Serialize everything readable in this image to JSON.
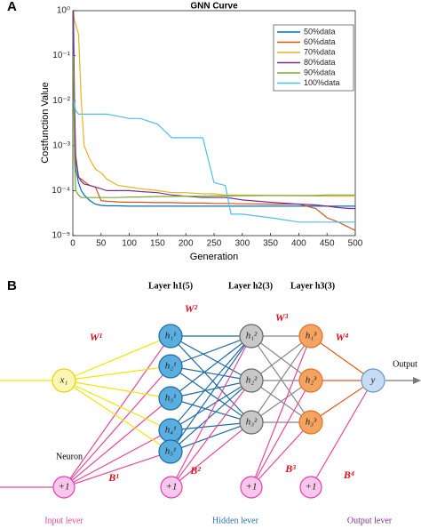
{
  "panel_labels": [
    "A",
    "B"
  ],
  "chart_data": {
    "type": "line",
    "title": "GNN Curve",
    "x_label": "Generation",
    "y_label": "Costfunction Value",
    "x": [
      1,
      3,
      5,
      10,
      15,
      20,
      30,
      40,
      50,
      60,
      80,
      100,
      120,
      150,
      175,
      200,
      230,
      250,
      270,
      280,
      290,
      300,
      350,
      400,
      430,
      450,
      470,
      490,
      500
    ],
    "series": [
      {
        "name": "50%data",
        "color": "#0072bd",
        "values": [
          1,
          0.001,
          0.0003,
          0.00015,
          0.0001,
          8e-05,
          6e-05,
          5e-05,
          4.7e-05,
          4.6e-05,
          4.6e-05,
          4.5e-05,
          4.5e-05,
          4.5e-05,
          4.5e-05,
          4.5e-05,
          4.5e-05,
          4.5e-05,
          4.5e-05,
          4.5e-05,
          4.5e-05,
          4.5e-05,
          4.5e-05,
          4.5e-05,
          4.5e-05,
          4.5e-05,
          4.5e-05,
          4.5e-05,
          4.5e-05
        ]
      },
      {
        "name": "60%data",
        "color": "#d95319",
        "values": [
          0.05,
          0.003,
          0.0005,
          0.0002,
          0.00018,
          0.00016,
          0.00013,
          0.00012,
          6e-05,
          5.8e-05,
          5.6e-05,
          5.5e-05,
          5.5e-05,
          5.4e-05,
          5.4e-05,
          5.3e-05,
          5.3e-05,
          5.2e-05,
          5.2e-05,
          5.2e-05,
          5.1e-05,
          5.1e-05,
          5e-05,
          5e-05,
          4e-05,
          2.5e-05,
          2e-05,
          1.5e-05,
          1.3e-05
        ]
      },
      {
        "name": "70%data",
        "color": "#edb120",
        "values": [
          1,
          0.6,
          0.5,
          0.3,
          0.01,
          0.001,
          0.0005,
          0.0003,
          0.00025,
          0.00018,
          0.00013,
          0.00012,
          0.00011,
          0.0001,
          9e-05,
          9e-05,
          8.5e-05,
          8.5e-05,
          8e-05,
          8e-05,
          8e-05,
          8e-05,
          7.8e-05,
          7.7e-05,
          7.6e-05,
          7.6e-05,
          7.5e-05,
          7.5e-05,
          7.5e-05
        ]
      },
      {
        "name": "80%data",
        "color": "#7e2f8e",
        "values": [
          1,
          0.01,
          0.0006,
          0.0002,
          0.00016,
          0.00014,
          0.00013,
          0.00012,
          0.00011,
          0.0001,
          0.0001,
          0.0001,
          9.5e-05,
          9e-05,
          8e-05,
          7.5e-05,
          7e-05,
          7e-05,
          7e-05,
          6.8e-05,
          6.5e-05,
          6.2e-05,
          5.5e-05,
          5e-05,
          4.8e-05,
          4.5e-05,
          4.2e-05,
          4e-05,
          4e-05
        ]
      },
      {
        "name": "90%data",
        "color": "#77ac30",
        "values": [
          0.1,
          0.0005,
          0.0001,
          8e-05,
          7e-05,
          7e-05,
          7e-05,
          7e-05,
          7e-05,
          7e-05,
          7e-05,
          7.2e-05,
          7.2e-05,
          7.4e-05,
          7.4e-05,
          7.5e-05,
          7.5e-05,
          7.6e-05,
          7.6e-05,
          7.6e-05,
          7.7e-05,
          7.7e-05,
          7.8e-05,
          7.8e-05,
          7.8e-05,
          8e-05,
          8e-05,
          8e-05,
          8e-05
        ]
      },
      {
        "name": "100%data",
        "color": "#4dbeee",
        "values": [
          0.01,
          0.008,
          0.006,
          0.005,
          0.005,
          0.005,
          0.005,
          0.005,
          0.005,
          0.005,
          0.0045,
          0.004,
          0.004,
          0.003,
          0.0015,
          0.0015,
          0.0015,
          0.00015,
          0.00013,
          3e-05,
          3e-05,
          3e-05,
          2.5e-05,
          2e-05,
          2e-05,
          2e-05,
          2e-05,
          2e-05,
          2e-05
        ]
      }
    ],
    "xlim": [
      0,
      500
    ],
    "xticks": [
      0,
      50,
      100,
      150,
      200,
      250,
      300,
      350,
      400,
      450,
      500
    ],
    "ylim": [
      1e-05,
      1
    ],
    "log_y": true,
    "yticks": [
      {
        "value": 1e-05,
        "label": "10⁻⁵"
      },
      {
        "value": 0.0001,
        "label": "10⁻⁴"
      },
      {
        "value": 0.001,
        "label": "10⁻³"
      },
      {
        "value": 0.01,
        "label": "10⁻²"
      },
      {
        "value": 0.1,
        "label": "10⁻¹"
      },
      {
        "value": 1,
        "label": "10⁰"
      }
    ],
    "legend": "northeast"
  },
  "diagram": {
    "layer_titles": [
      "Layer h1(5)",
      "Layer h2(3)",
      "Layer h3(3)"
    ],
    "input": "x₁",
    "hidden_1": [
      "h₁¹",
      "h₂¹",
      "h₃¹",
      "h₄¹",
      "h₅¹"
    ],
    "hidden_2": [
      "h₁²",
      "h₂²",
      "h₃²"
    ],
    "hidden_3": [
      "h₁³",
      "h₂³",
      "h₃³"
    ],
    "output_node": "y",
    "bias": [
      "+1",
      "+1",
      "+1",
      "+1"
    ],
    "weights": [
      "W¹",
      "W²",
      "W³",
      "W⁴"
    ],
    "biases": [
      "B¹",
      "B²",
      "B³",
      "B⁴"
    ],
    "neuron_label": "Neuron",
    "output_label": "Output",
    "bottom_labels": [
      "Input lever",
      "Hidden lever",
      "Output lever"
    ]
  }
}
